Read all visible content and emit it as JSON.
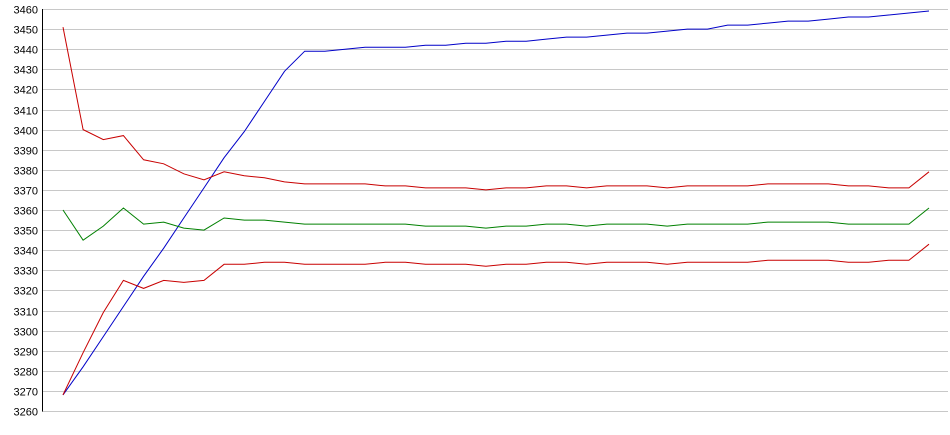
{
  "chart_data": {
    "type": "line",
    "title": "",
    "xlabel": "",
    "ylabel": "",
    "ylim": [
      3260,
      3460
    ],
    "yticks": [
      3260,
      3270,
      3280,
      3290,
      3300,
      3310,
      3320,
      3330,
      3340,
      3350,
      3360,
      3370,
      3380,
      3390,
      3400,
      3410,
      3420,
      3430,
      3440,
      3450,
      3460
    ],
    "x": [
      0,
      1,
      2,
      3,
      4,
      5,
      6,
      7,
      8,
      9,
      10,
      11,
      12,
      13,
      14,
      15,
      16,
      17,
      18,
      19,
      20,
      21,
      22,
      23,
      24,
      25,
      26,
      27,
      28,
      29,
      30,
      31,
      32,
      33,
      34,
      35,
      36,
      37,
      38,
      39,
      40,
      41,
      42,
      43
    ],
    "grid": true,
    "legend": "none",
    "series": [
      {
        "color": "#0000c8",
        "values": [
          3268,
          3282,
          3297,
          3312,
          3327,
          3341,
          3356,
          3371,
          3386,
          3399,
          3414,
          3429,
          3439,
          3439,
          3440,
          3441,
          3441,
          3441,
          3442,
          3442,
          3443,
          3443,
          3444,
          3444,
          3445,
          3446,
          3446,
          3447,
          3448,
          3448,
          3449,
          3450,
          3450,
          3452,
          3452,
          3453,
          3454,
          3454,
          3455,
          3456,
          3456,
          3457,
          3458,
          3459
        ]
      },
      {
        "color": "#c80000",
        "values": [
          3451,
          3400,
          3395,
          3397,
          3385,
          3383,
          3378,
          3375,
          3379,
          3377,
          3376,
          3374,
          3373,
          3373,
          3373,
          3373,
          3372,
          3372,
          3371,
          3371,
          3371,
          3370,
          3371,
          3371,
          3372,
          3372,
          3371,
          3372,
          3372,
          3372,
          3371,
          3372,
          3372,
          3372,
          3372,
          3373,
          3373,
          3373,
          3373,
          3372,
          3372,
          3371,
          3371,
          3379
        ]
      },
      {
        "color": "#008000",
        "values": [
          3360,
          3345,
          3352,
          3361,
          3353,
          3354,
          3351,
          3350,
          3356,
          3355,
          3355,
          3354,
          3353,
          3353,
          3353,
          3353,
          3353,
          3353,
          3352,
          3352,
          3352,
          3351,
          3352,
          3352,
          3353,
          3353,
          3352,
          3353,
          3353,
          3353,
          3352,
          3353,
          3353,
          3353,
          3353,
          3354,
          3354,
          3354,
          3354,
          3353,
          3353,
          3353,
          3353,
          3361
        ]
      },
      {
        "color": "#c80000",
        "values": [
          3268,
          3289,
          3309,
          3325,
          3321,
          3325,
          3324,
          3325,
          3333,
          3333,
          3334,
          3334,
          3333,
          3333,
          3333,
          3333,
          3334,
          3334,
          3333,
          3333,
          3333,
          3332,
          3333,
          3333,
          3334,
          3334,
          3333,
          3334,
          3334,
          3334,
          3333,
          3334,
          3334,
          3334,
          3334,
          3335,
          3335,
          3335,
          3335,
          3334,
          3334,
          3335,
          3335,
          3343
        ]
      }
    ]
  }
}
